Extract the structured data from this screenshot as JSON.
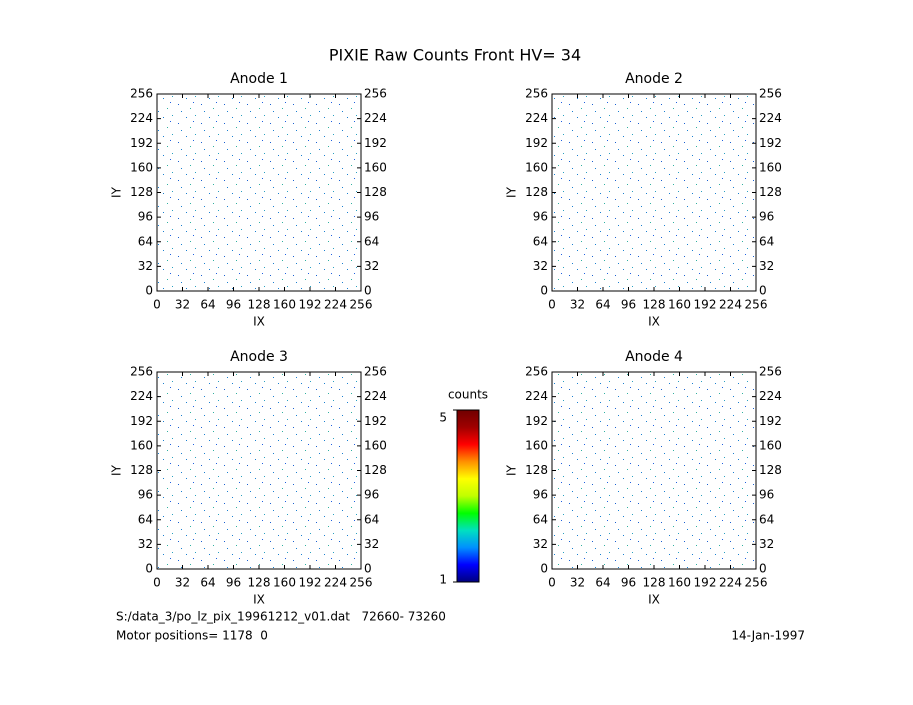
{
  "title": "PIXIE Raw Counts Front HV= 34",
  "chart_data": [
    {
      "type": "heatmap",
      "title": "Anode 1",
      "xlabel": "IX",
      "ylabel": "IY",
      "xlim": [
        0,
        256
      ],
      "ylim": [
        0,
        256
      ],
      "xticks": [
        0,
        32,
        64,
        96,
        128,
        160,
        192,
        224,
        256
      ],
      "yticks": [
        0,
        32,
        64,
        96,
        128,
        160,
        192,
        224,
        256
      ]
    },
    {
      "type": "heatmap",
      "title": "Anode 2",
      "xlabel": "IX",
      "ylabel": "IY",
      "xlim": [
        0,
        256
      ],
      "ylim": [
        0,
        256
      ],
      "xticks": [
        0,
        32,
        64,
        96,
        128,
        160,
        192,
        224,
        256
      ],
      "yticks": [
        0,
        32,
        64,
        96,
        128,
        160,
        192,
        224,
        256
      ]
    },
    {
      "type": "heatmap",
      "title": "Anode 3",
      "xlabel": "IX",
      "ylabel": "IY",
      "xlim": [
        0,
        256
      ],
      "ylim": [
        0,
        256
      ],
      "xticks": [
        0,
        32,
        64,
        96,
        128,
        160,
        192,
        224,
        256
      ],
      "yticks": [
        0,
        32,
        64,
        96,
        128,
        160,
        192,
        224,
        256
      ]
    },
    {
      "type": "heatmap",
      "title": "Anode 4",
      "xlabel": "IX",
      "ylabel": "IY",
      "xlim": [
        0,
        256
      ],
      "ylim": [
        0,
        256
      ],
      "xticks": [
        0,
        32,
        64,
        96,
        128,
        160,
        192,
        224,
        256
      ],
      "yticks": [
        0,
        32,
        64,
        96,
        128,
        160,
        192,
        224,
        256
      ]
    }
  ],
  "colorbar": {
    "label": "counts",
    "clim": [
      1,
      5
    ],
    "ticks": [
      1,
      5
    ],
    "colors": [
      "#00007f",
      "#0000ff",
      "#0090ff",
      "#00e0c0",
      "#00ff00",
      "#c0ff00",
      "#ffff00",
      "#ff9000",
      "#ff0000",
      "#a00000",
      "#700000"
    ]
  },
  "footer": {
    "file": "S:/data_3/po_lz_pix_19961212_v01.dat   72660- 73260",
    "motor": "Motor positions= 1178  0",
    "date": "14-Jan-1997"
  }
}
